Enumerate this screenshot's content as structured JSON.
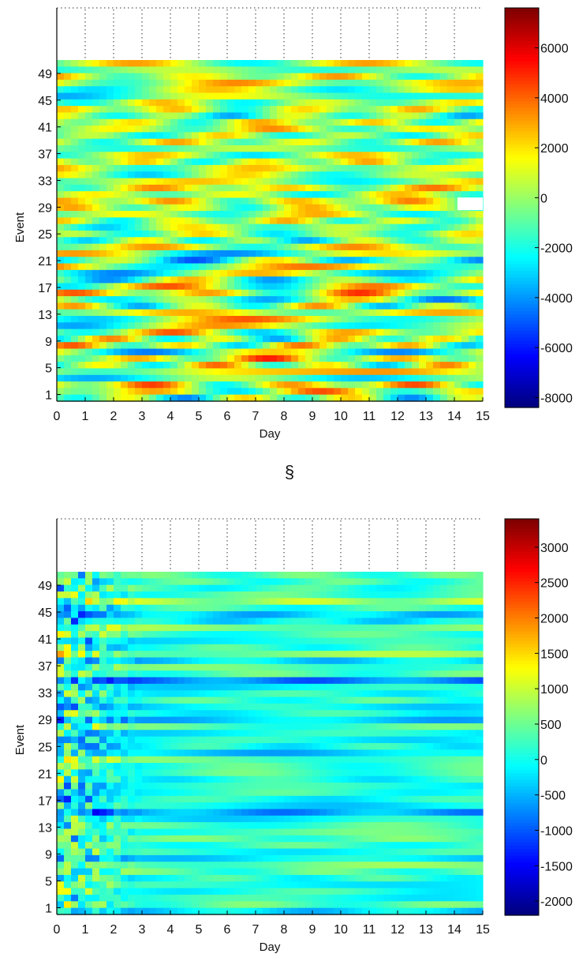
{
  "separator": "§",
  "chart_data": [
    {
      "type": "heatmap",
      "title": "",
      "xlabel": "Day",
      "ylabel": "Event",
      "xlim": [
        0,
        15
      ],
      "ylim": [
        0,
        51
      ],
      "x_ticks": [
        "0",
        "1",
        "2",
        "3",
        "4",
        "5",
        "6",
        "7",
        "8",
        "9",
        "10",
        "11",
        "12",
        "13",
        "14",
        "15"
      ],
      "y_ticks": [
        "1",
        "5",
        "9",
        "13",
        "17",
        "21",
        "25",
        "29",
        "33",
        "37",
        "41",
        "45",
        "49"
      ],
      "colorbar_range": [
        -8400,
        7600
      ],
      "colorbar_ticks": [
        "6000",
        "4000",
        "2000",
        "0",
        "-2000",
        "-4000",
        "-6000",
        "-8000"
      ],
      "colormap": "jet",
      "grid": "dotted vertical at each day (upper strip)",
      "missing_cell": {
        "day_range": [
          14,
          15
        ],
        "event": 29.5
      }
    },
    {
      "type": "heatmap",
      "title": "",
      "xlabel": "Day",
      "ylabel": "Event",
      "xlim": [
        0,
        15
      ],
      "ylim": [
        0,
        51
      ],
      "x_ticks": [
        "0",
        "1",
        "2",
        "3",
        "4",
        "5",
        "6",
        "7",
        "8",
        "9",
        "10",
        "11",
        "12",
        "13",
        "14",
        "15"
      ],
      "y_ticks": [
        "1",
        "5",
        "9",
        "13",
        "17",
        "21",
        "25",
        "29",
        "33",
        "37",
        "41",
        "45",
        "49"
      ],
      "colorbar_range": [
        -2200,
        3400
      ],
      "colorbar_ticks": [
        "3000",
        "2500",
        "2000",
        "1500",
        "1000",
        "500",
        "0",
        "-500",
        "-1000",
        "-1500",
        "-2000"
      ],
      "colormap": "jet",
      "grid": "dotted vertical at each day (upper strip)"
    }
  ]
}
